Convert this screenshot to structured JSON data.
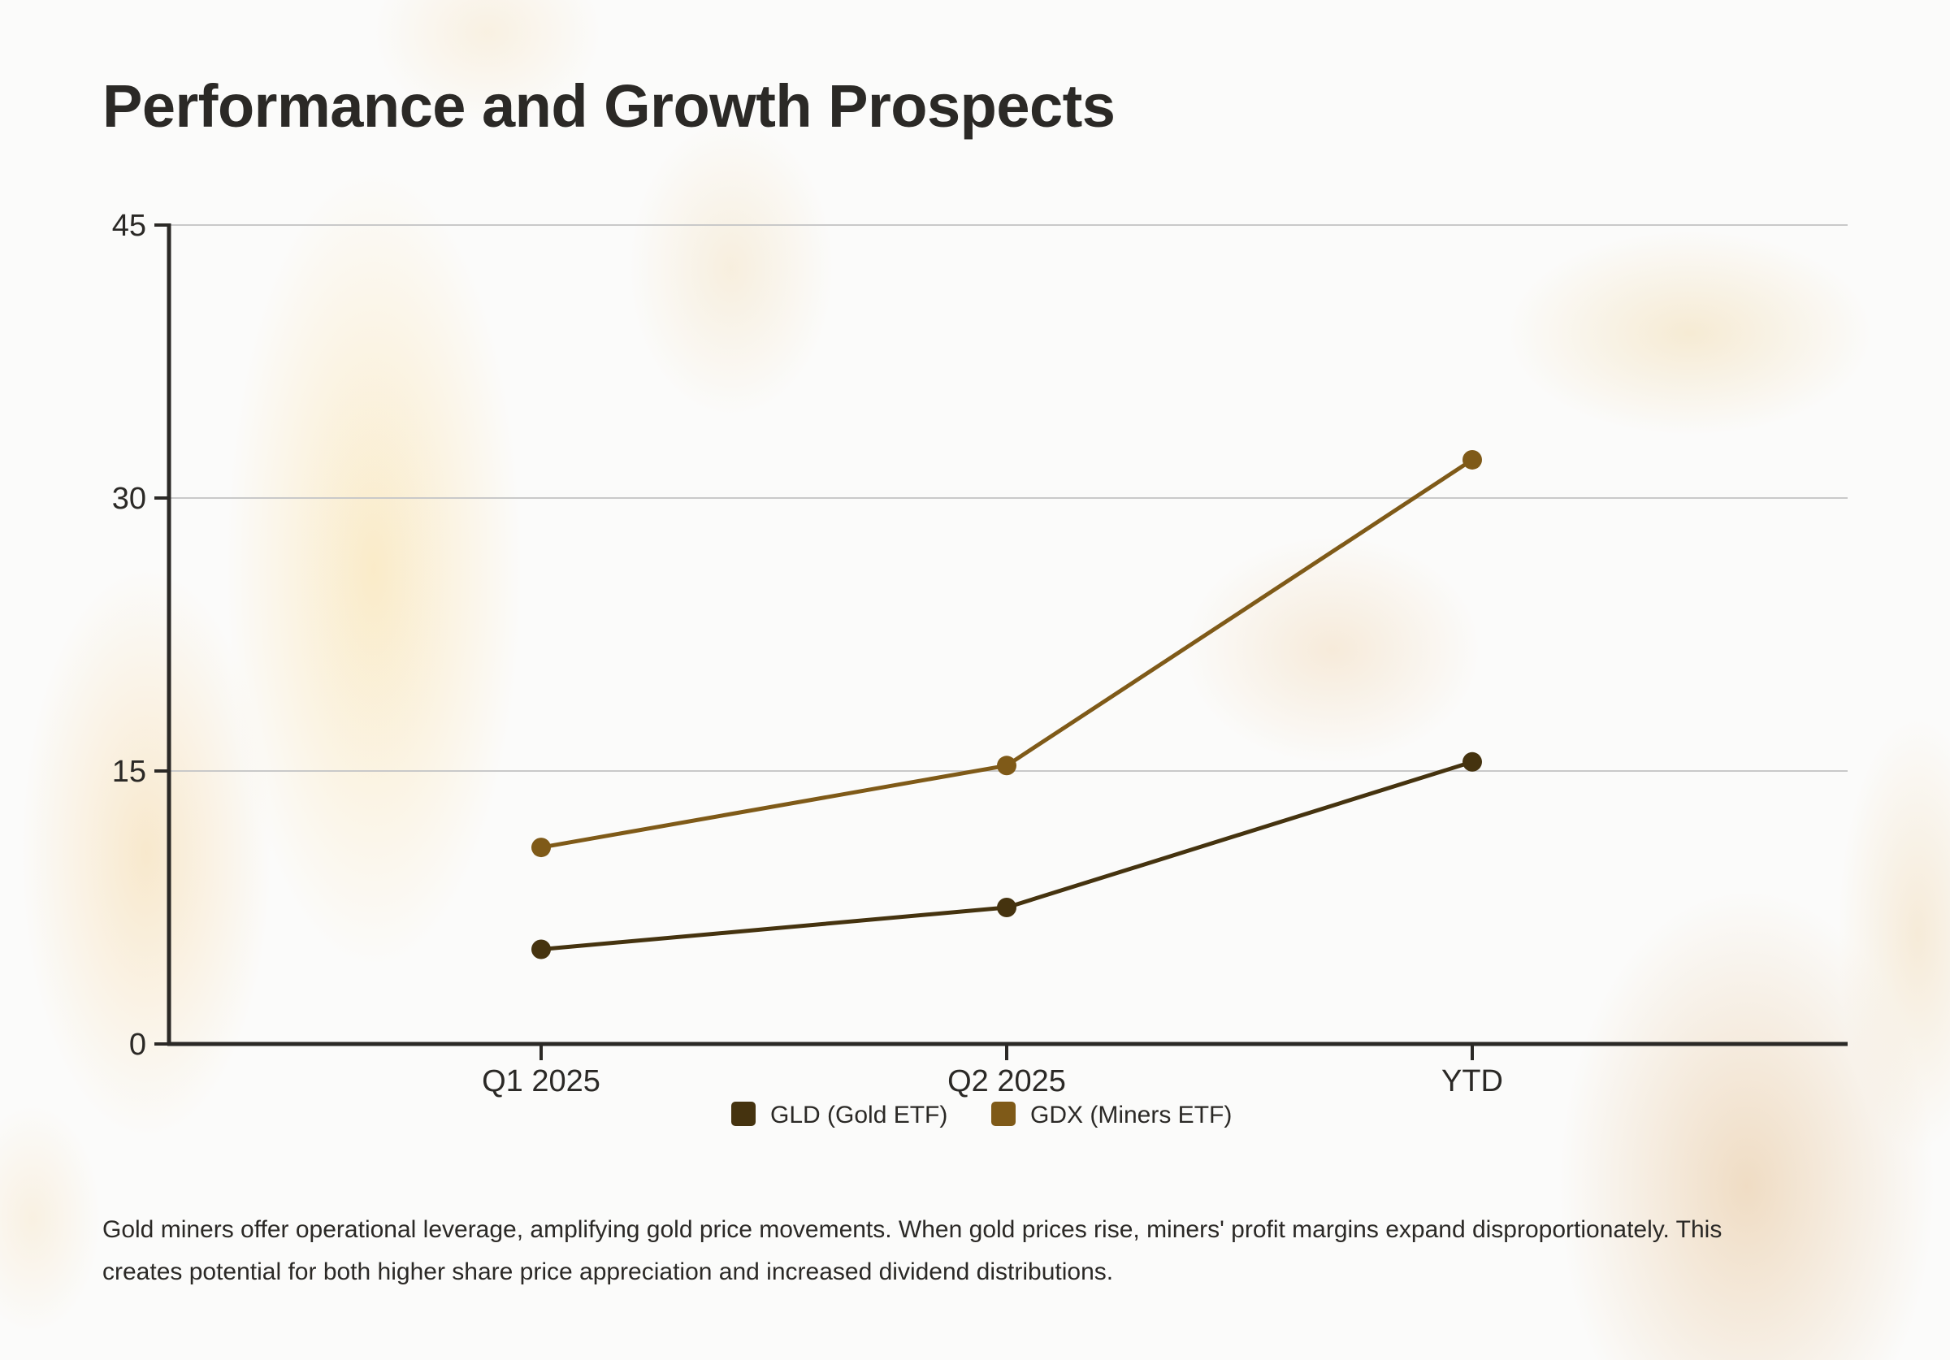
{
  "page": {
    "title": "Performance and Growth Prospects",
    "caption": "Gold miners offer operational leverage, amplifying gold price movements. When gold prices rise, miners' profit margins expand disproportionately. This creates potential for both higher share price appreciation and increased dividend distributions."
  },
  "chart_data": {
    "type": "line",
    "title": "",
    "xlabel": "",
    "ylabel": "",
    "categories": [
      "Q1 2025",
      "Q2 2025",
      "YTD"
    ],
    "series": [
      {
        "name": "GLD (Gold ETF)",
        "values": [
          5.2,
          7.5,
          15.5
        ],
        "color": "#45330f"
      },
      {
        "name": "GDX (Miners ETF)",
        "values": [
          10.8,
          15.3,
          32.1
        ],
        "color": "#7f5a18"
      }
    ],
    "ylim": [
      0,
      45
    ],
    "yticks": [
      0,
      15,
      30,
      45
    ],
    "grid": true,
    "legend": "bottom-center",
    "colors": {
      "axis": "#2b2926",
      "grid": "#c9c9c9",
      "text": "#2b2926"
    }
  }
}
